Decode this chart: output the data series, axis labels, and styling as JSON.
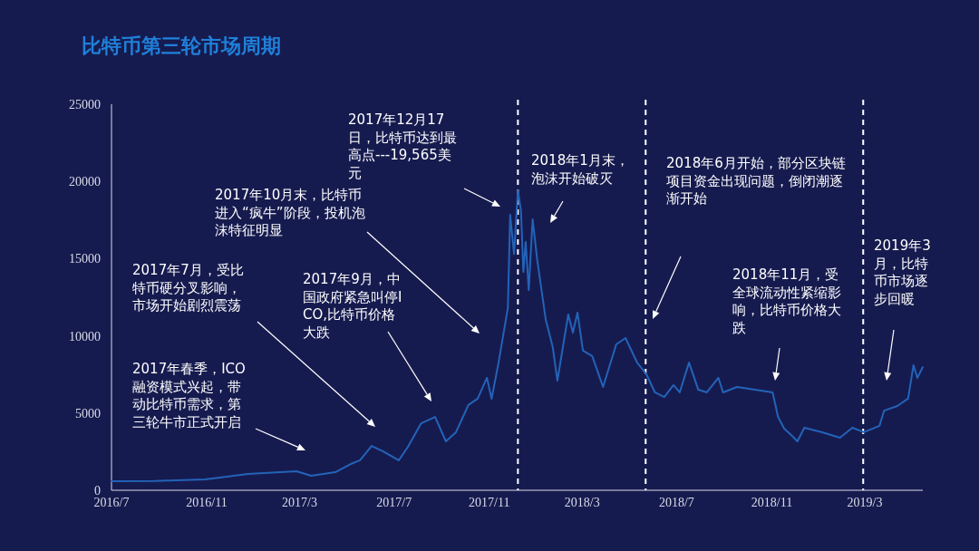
{
  "chart_data": {
    "type": "line",
    "title": "比特币第三轮市场周期",
    "x": [
      "2016-07-01",
      "2016-08-25",
      "2016-10-30",
      "2016-12-24",
      "2017-02-25",
      "2017-03-16",
      "2017-04-16",
      "2017-05-06",
      "2017-05-18",
      "2017-06-02",
      "2017-06-17",
      "2017-07-07",
      "2017-07-19",
      "2017-08-05",
      "2017-08-23",
      "2017-09-06",
      "2017-09-19",
      "2017-10-05",
      "2017-10-17",
      "2017-10-29",
      "2017-11-04",
      "2017-11-13",
      "2017-11-25",
      "2017-11-28",
      "2017-12-03",
      "2017-12-08",
      "2017-12-12",
      "2017-12-15",
      "2017-12-18",
      "2017-12-22",
      "2017-12-27",
      "2018-01-02",
      "2018-01-13",
      "2018-01-22",
      "2018-01-28",
      "2018-02-11",
      "2018-02-17",
      "2018-02-23",
      "2018-03-02",
      "2018-03-14",
      "2018-03-28",
      "2018-04-14",
      "2018-04-26",
      "2018-05-11",
      "2018-05-23",
      "2018-06-03",
      "2018-06-15",
      "2018-06-27",
      "2018-07-05",
      "2018-07-17",
      "2018-07-29",
      "2018-08-09",
      "2018-08-24",
      "2018-08-30",
      "2018-09-17",
      "2018-10-10",
      "2018-11-02",
      "2018-11-09",
      "2018-11-17",
      "2018-11-26",
      "2018-12-04",
      "2018-12-13",
      "2019-01-05",
      "2019-01-28",
      "2019-02-13",
      "2019-02-28",
      "2019-03-20",
      "2019-03-26",
      "2019-04-12",
      "2019-04-26",
      "2019-05-03",
      "2019-05-08",
      "2019-05-15"
    ],
    "series": [
      {
        "color": "#2363b8",
        "values": [
          590,
          600,
          700,
          1050,
          1230,
          940,
          1170,
          1700,
          1940,
          2870,
          2520,
          1940,
          2820,
          4340,
          4750,
          3170,
          3760,
          5520,
          5930,
          7280,
          5930,
          8270,
          11800,
          17840,
          15300,
          19420,
          18070,
          14140,
          16080,
          12970,
          17550,
          14900,
          11030,
          9270,
          7100,
          11380,
          10210,
          11500,
          9040,
          8690,
          6690,
          9450,
          9860,
          8270,
          7510,
          6340,
          6040,
          6810,
          6340,
          8270,
          6510,
          6340,
          7280,
          6340,
          6690,
          6510,
          6340,
          4750,
          3990,
          3580,
          3170,
          4050,
          3760,
          3400,
          4050,
          3760,
          4170,
          5160,
          5460,
          5930,
          8100,
          7280,
          7980
        ]
      }
    ],
    "xlim": [
      "2016-07-01",
      "2019-05-15"
    ],
    "xticks": [
      {
        "value": "2016-07",
        "label": "2016/7"
      },
      {
        "value": "2016-11",
        "label": "2016/11"
      },
      {
        "value": "2017-03",
        "label": "2017/3"
      },
      {
        "value": "2017-07",
        "label": "2017/7"
      },
      {
        "value": "2017-11",
        "label": "2017/11"
      },
      {
        "value": "2018-03",
        "label": "2018/3"
      },
      {
        "value": "2018-07",
        "label": "2018/7"
      },
      {
        "value": "2018-11",
        "label": "2018/11"
      },
      {
        "value": "2019-03",
        "label": "2019/3"
      }
    ],
    "ylim": [
      0,
      25000
    ],
    "yticks": [
      0,
      5000,
      10000,
      15000,
      20000,
      25000
    ],
    "grid": false,
    "marker": "none",
    "line_style": "solid",
    "ref_lines": [
      {
        "axis": "x",
        "value": "2017-12-08",
        "color": "#ffffff",
        "line_style": "dashed"
      },
      {
        "axis": "x",
        "value": "2018-05-22",
        "color": "#ffffff",
        "line_style": "dashed"
      },
      {
        "axis": "x",
        "value": "2019-02-27",
        "color": "#ffffff",
        "line_style": "dashed"
      }
    ],
    "annotations": [
      "2017年春季，ICO融资模式兴起，带动比特币需求，第三轮牛市正式开启",
      "2017年7月，受比特币硬分叉影响，市场开始剧烈震荡",
      "2017年9月，中国政府紧急叫停ICO,比特币价格大跌",
      "2017年10月末，比特币进入“疯牛”阶段，投机泡沫特征明显",
      "2017年12月17日，比特币达到最高点---19,565美元",
      "2018年1月末，泡沫开始破灭",
      "2018年6月开始，部分区块链项目资金出现问题，倒闭潮逐渐开始",
      "2018年11月，受全球流动性紧缩影响，比特币价格大跌",
      "2019年3月，比特币市场逐步回暖"
    ]
  }
}
